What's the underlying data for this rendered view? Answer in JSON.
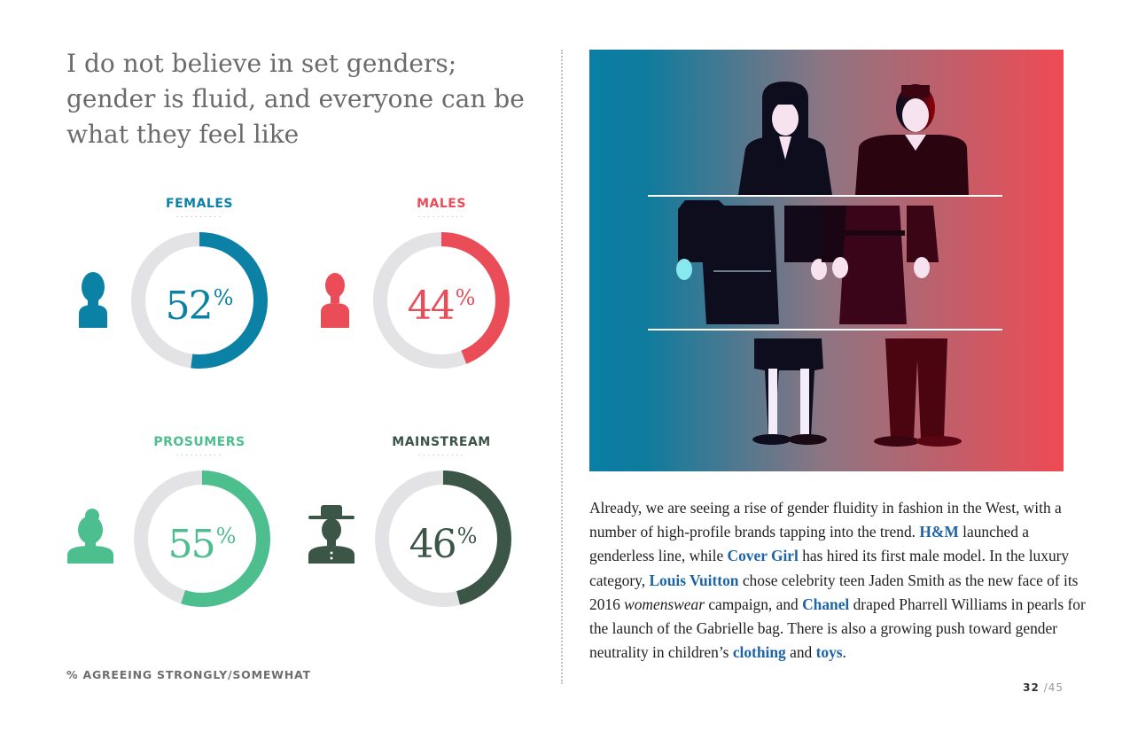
{
  "headline": "I do not believe in set genders; gender is fluid, and everyone can be what they feel like",
  "chart_data": {
    "type": "donut",
    "items": [
      {
        "label": "FEMALES",
        "value": 52,
        "display": "52",
        "color": "#0b81a6",
        "icon": "woman-icon"
      },
      {
        "label": "MALES",
        "value": 44,
        "display": "44",
        "color": "#ea4c58",
        "icon": "man-icon"
      },
      {
        "label": "PROSUMERS",
        "value": 55,
        "display": "55",
        "color": "#4dbf8f",
        "icon": "woman-icon"
      },
      {
        "label": "MAINSTREAM",
        "value": 46,
        "display": "46",
        "color": "#3b5547",
        "icon": "man-with-hat-icon"
      }
    ],
    "unit": "%",
    "track_color": "#e3e3e5",
    "note": "% AGREEING STRONGLY/SOMEWHAT"
  },
  "label_dots": "··········",
  "illustration": {
    "icon": "gender-fluid-figures-icon",
    "gradient_left": "#0a7ea4",
    "gradient_right": "#ef4a53"
  },
  "article": {
    "s1": "Already, we are seeing a rise of gender fluidity in fashion in the West, with a number of high-profile brands tapping into the trend.",
    "hm": "H&M",
    "s2": "launched a genderless line, while",
    "covergirl": "Cover Girl",
    "s3": "has hired its first male model. In the luxury category,",
    "lv": "Louis Vuitton",
    "s4": "chose celebrity teen Jaden Smith as the new face of its 2016",
    "womenswear": "womenswear",
    "s5": "campaign, and",
    "chanel": "Chanel",
    "s6": "draped Pharrell Williams in pearls for the launch of the Gabrielle bag. There is also a growing push toward gender neutrality in children’s",
    "clothing": "clothing",
    "and": "and",
    "toys": "toys",
    "end": "."
  },
  "page": {
    "current": "32",
    "total": "/45"
  }
}
